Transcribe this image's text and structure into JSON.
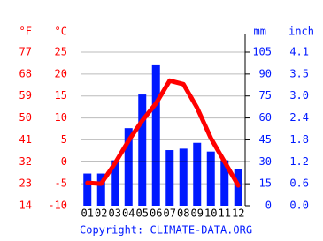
{
  "chart_data": {
    "type": "combo",
    "categories": [
      "01",
      "02",
      "03",
      "04",
      "05",
      "06",
      "07",
      "08",
      "09",
      "10",
      "11",
      "12"
    ],
    "series": [
      {
        "name": "Precipitation",
        "type": "bar",
        "axis": "y2",
        "color": "#0019ff",
        "values": [
          22,
          22,
          31,
          53,
          76,
          96,
          38,
          39,
          43,
          37,
          31,
          25
        ]
      },
      {
        "name": "Temperature",
        "type": "line",
        "color": "#ff0000",
        "values": [
          -4.8,
          -5,
          -0.4,
          4.8,
          9.4,
          13.3,
          18.5,
          17.7,
          12.3,
          5.4,
          0,
          -5.4
        ]
      }
    ],
    "ylabel": "°C",
    "ylabel_f": "°F",
    "y2label": "mm",
    "y2label_in": "inch",
    "ylim": [
      -10,
      25
    ],
    "yticks": [
      -10,
      -5,
      0,
      5,
      10,
      15,
      20,
      25
    ],
    "yticks_f": [
      {
        "value": -10,
        "label": "14"
      },
      {
        "value": -5,
        "label": "23"
      },
      {
        "value": 0,
        "label": "32"
      },
      {
        "value": 5,
        "label": "41"
      },
      {
        "value": 10,
        "label": "50"
      },
      {
        "value": 15,
        "label": "59"
      },
      {
        "value": 20,
        "label": "68"
      },
      {
        "value": 25,
        "label": "77"
      }
    ],
    "y2lim": [
      0,
      105
    ],
    "y2ticks": [
      0,
      15,
      30,
      45,
      60,
      75,
      90,
      105
    ],
    "y2ticks_in": [
      {
        "value": 0,
        "label": "0.0"
      },
      {
        "value": 15,
        "label": "0.6"
      },
      {
        "value": 30,
        "label": "1.2"
      },
      {
        "value": 45,
        "label": "1.8"
      },
      {
        "value": 60,
        "label": "2.4"
      },
      {
        "value": 75,
        "label": "3.0"
      },
      {
        "value": 90,
        "label": "3.5"
      },
      {
        "value": 105,
        "label": "4.1"
      }
    ],
    "grid": true,
    "source": "Copyright: CLIMATE-DATA.ORG"
  }
}
